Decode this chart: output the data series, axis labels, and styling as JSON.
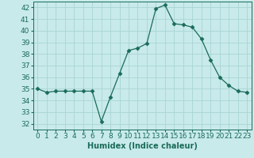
{
  "x": [
    0,
    1,
    2,
    3,
    4,
    5,
    6,
    7,
    8,
    9,
    10,
    11,
    12,
    13,
    14,
    15,
    16,
    17,
    18,
    19,
    20,
    21,
    22,
    23
  ],
  "y": [
    35,
    34.7,
    34.8,
    34.8,
    34.8,
    34.8,
    34.8,
    32.2,
    34.3,
    36.3,
    38.3,
    38.5,
    38.9,
    41.9,
    42.2,
    40.6,
    40.5,
    40.3,
    39.3,
    37.5,
    36.0,
    35.3,
    34.8,
    34.7
  ],
  "xlabel": "Humidex (Indice chaleur)",
  "ylim": [
    31.5,
    42.5
  ],
  "xlim": [
    -0.5,
    23.5
  ],
  "yticks": [
    32,
    33,
    34,
    35,
    36,
    37,
    38,
    39,
    40,
    41,
    42
  ],
  "xticks": [
    0,
    1,
    2,
    3,
    4,
    5,
    6,
    7,
    8,
    9,
    10,
    11,
    12,
    13,
    14,
    15,
    16,
    17,
    18,
    19,
    20,
    21,
    22,
    23
  ],
  "xtick_labels": [
    "0",
    "1",
    "2",
    "3",
    "4",
    "5",
    "6",
    "7",
    "8",
    "9",
    "10",
    "11",
    "12",
    "13",
    "14",
    "15",
    "16",
    "17",
    "18",
    "19",
    "20",
    "21",
    "22",
    "23"
  ],
  "line_color": "#1a6b5a",
  "marker": "D",
  "marker_size": 2.5,
  "bg_color": "#c8eaea",
  "grid_color": "#aad4d4",
  "label_fontsize": 7,
  "tick_fontsize": 6.5
}
